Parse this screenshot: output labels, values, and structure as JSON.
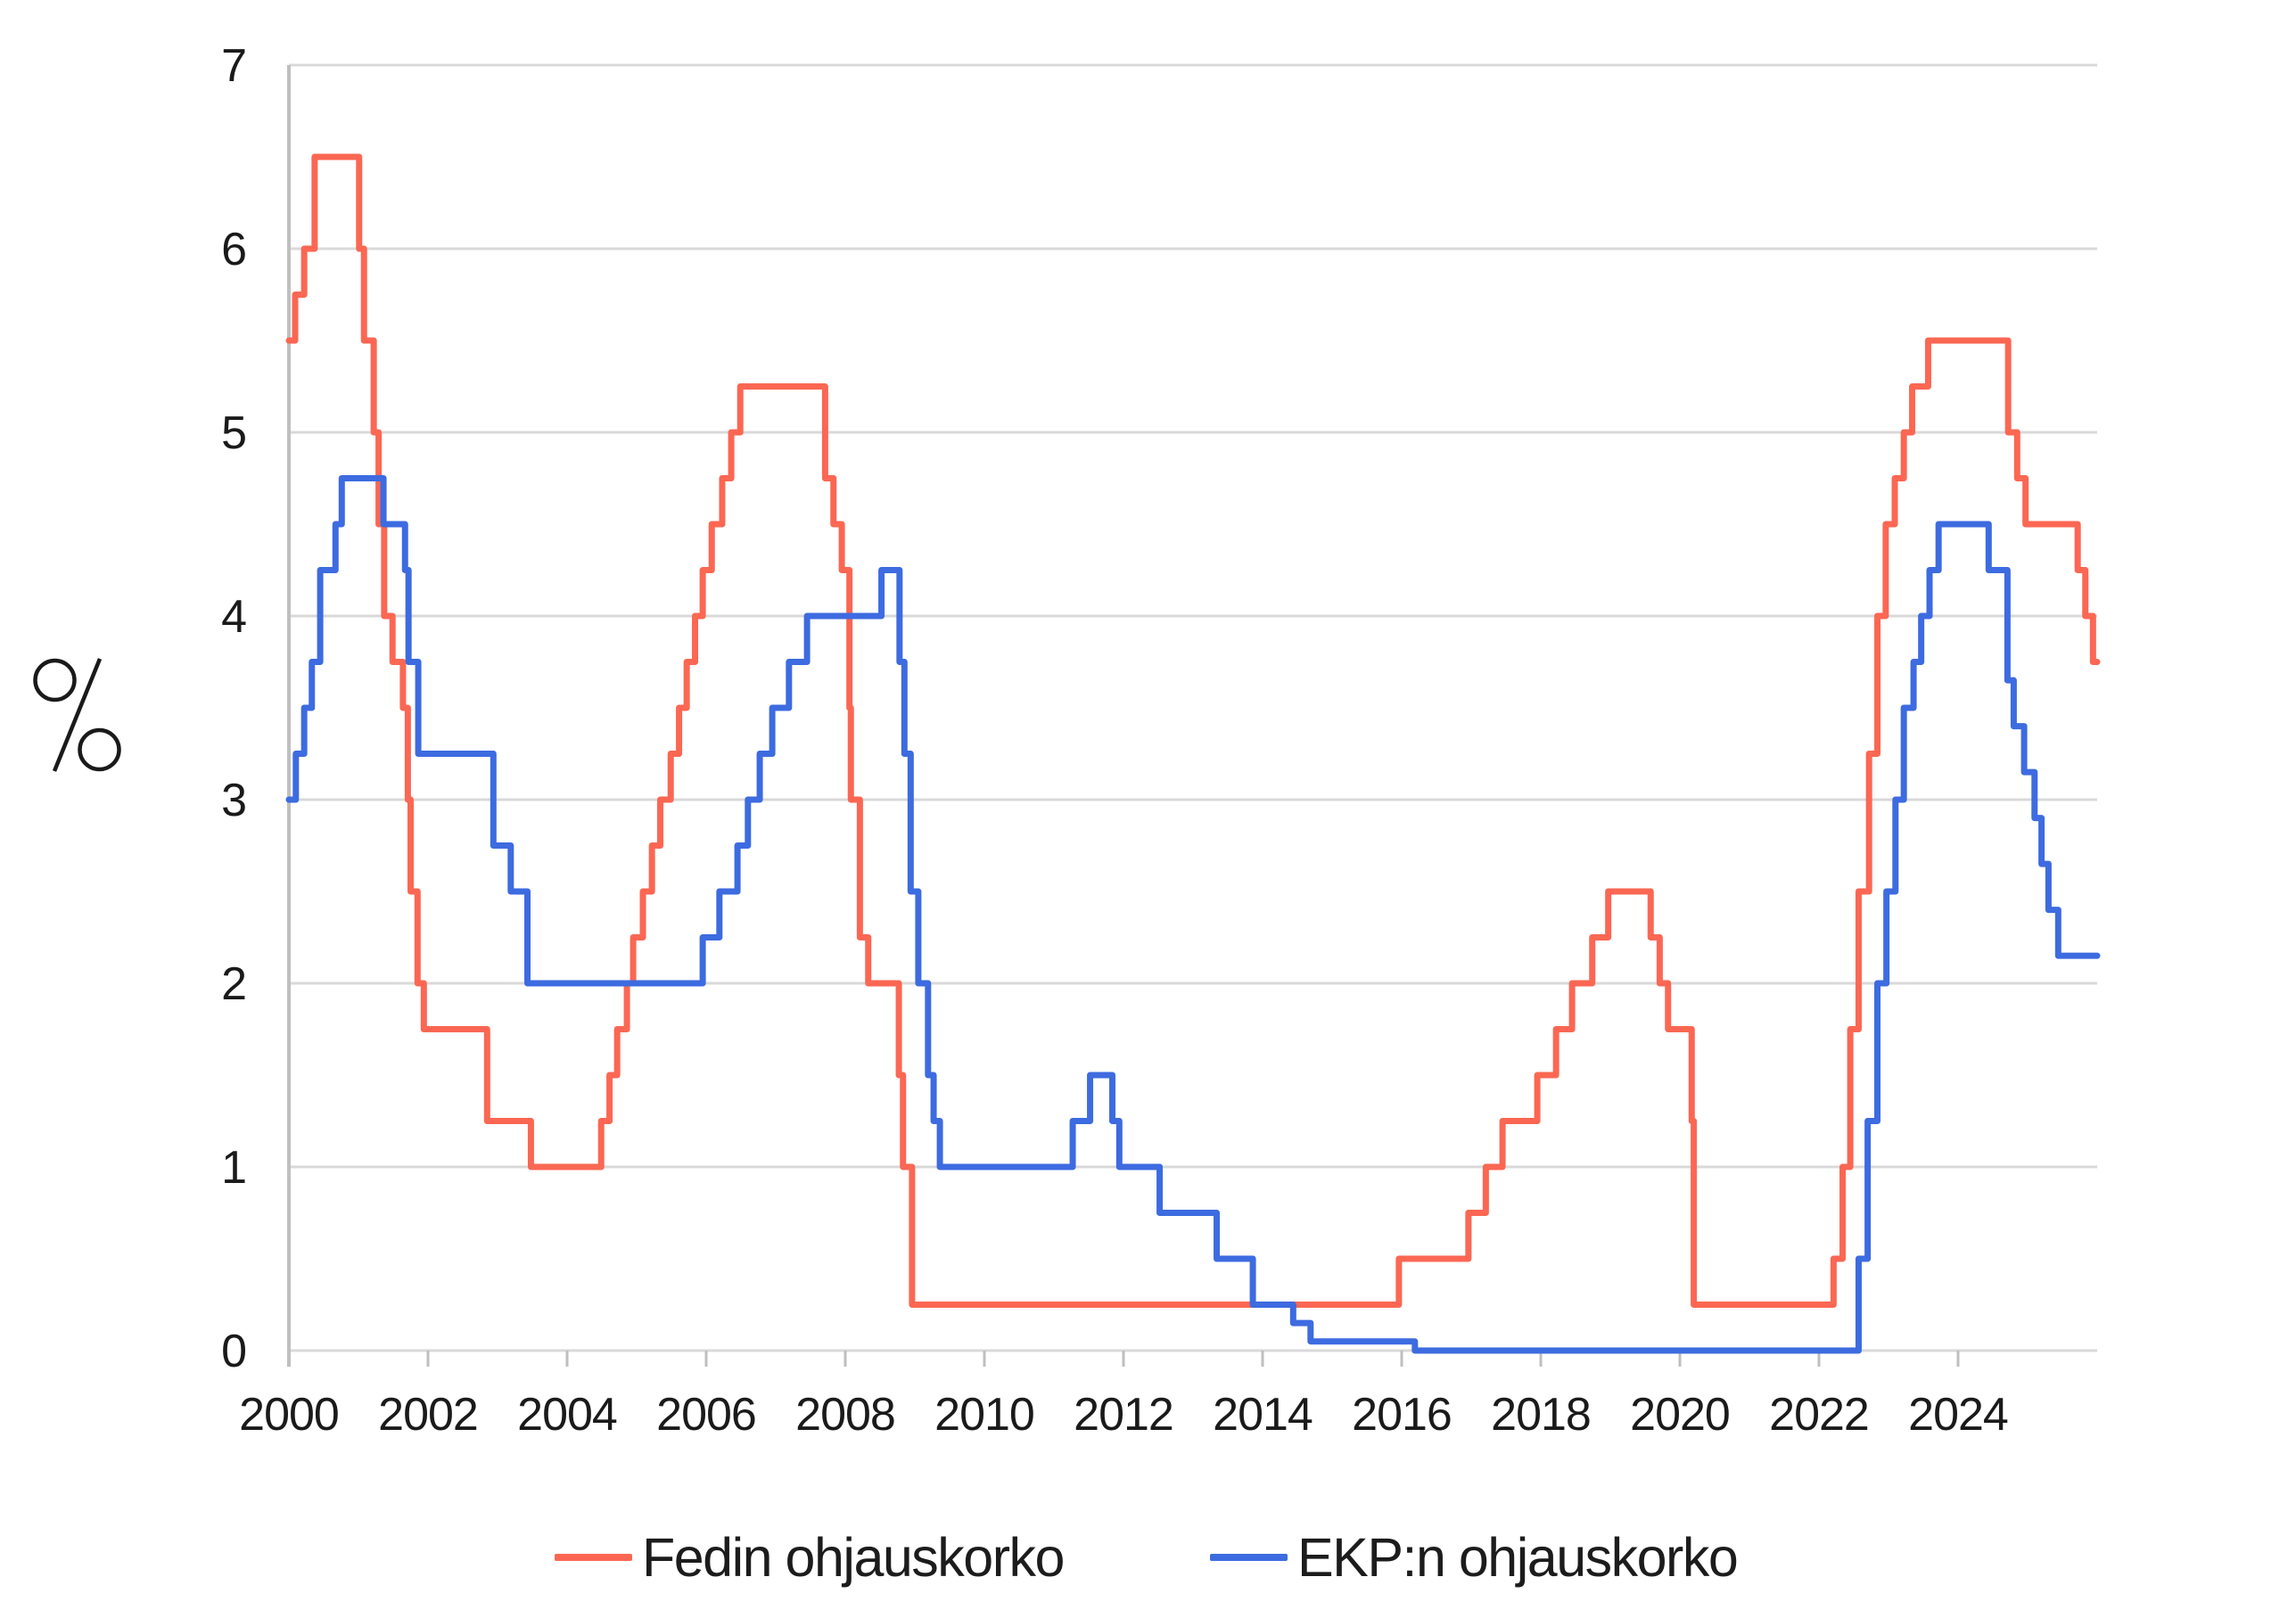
{
  "chart_data": {
    "type": "line",
    "subtype": "step",
    "title": "",
    "xlabel": "",
    "ylabel": "%",
    "ylim": [
      0,
      7
    ],
    "xlim": [
      2000,
      2026
    ],
    "y_ticks": [
      0,
      1,
      2,
      3,
      4,
      5,
      6,
      7
    ],
    "x_ticks": [
      2000,
      2002,
      2004,
      2006,
      2008,
      2010,
      2012,
      2014,
      2016,
      2018,
      2020,
      2022,
      2024
    ],
    "grid": "horizontal",
    "legend_position": "bottom",
    "style": {
      "gridline_color": "#d9d9d9",
      "axis_color": "#bfbfbf",
      "text_color": "#1a1a1a",
      "background": "#ffffff",
      "line_width": 7
    },
    "series": [
      {
        "id": "fed",
        "name": "Fedin ohjauskorko",
        "color": "#fb6753",
        "end_x": 2026.0,
        "steps": [
          [
            2000.0,
            5.5
          ],
          [
            2000.09,
            5.75
          ],
          [
            2000.22,
            6.0
          ],
          [
            2000.37,
            6.5
          ],
          [
            2001.01,
            6.0
          ],
          [
            2001.08,
            5.5
          ],
          [
            2001.22,
            5.0
          ],
          [
            2001.29,
            4.5
          ],
          [
            2001.37,
            4.0
          ],
          [
            2001.49,
            3.75
          ],
          [
            2001.64,
            3.5
          ],
          [
            2001.71,
            3.0
          ],
          [
            2001.75,
            2.5
          ],
          [
            2001.85,
            2.0
          ],
          [
            2001.94,
            1.75
          ],
          [
            2002.85,
            1.25
          ],
          [
            2003.48,
            1.0
          ],
          [
            2004.49,
            1.25
          ],
          [
            2004.61,
            1.5
          ],
          [
            2004.72,
            1.75
          ],
          [
            2004.86,
            2.0
          ],
          [
            2004.95,
            2.25
          ],
          [
            2005.09,
            2.5
          ],
          [
            2005.22,
            2.75
          ],
          [
            2005.34,
            3.0
          ],
          [
            2005.49,
            3.25
          ],
          [
            2005.61,
            3.5
          ],
          [
            2005.72,
            3.75
          ],
          [
            2005.84,
            4.0
          ],
          [
            2005.95,
            4.25
          ],
          [
            2006.08,
            4.5
          ],
          [
            2006.23,
            4.75
          ],
          [
            2006.36,
            5.0
          ],
          [
            2006.49,
            5.25
          ],
          [
            2007.71,
            4.75
          ],
          [
            2007.83,
            4.5
          ],
          [
            2007.95,
            4.25
          ],
          [
            2008.06,
            3.5
          ],
          [
            2008.08,
            3.0
          ],
          [
            2008.21,
            2.25
          ],
          [
            2008.33,
            2.0
          ],
          [
            2008.77,
            1.5
          ],
          [
            2008.83,
            1.0
          ],
          [
            2008.96,
            0.25
          ],
          [
            2015.96,
            0.5
          ],
          [
            2016.96,
            0.75
          ],
          [
            2017.21,
            1.0
          ],
          [
            2017.45,
            1.25
          ],
          [
            2017.95,
            1.5
          ],
          [
            2018.22,
            1.75
          ],
          [
            2018.45,
            2.0
          ],
          [
            2018.74,
            2.25
          ],
          [
            2018.97,
            2.5
          ],
          [
            2019.58,
            2.25
          ],
          [
            2019.71,
            2.0
          ],
          [
            2019.83,
            1.75
          ],
          [
            2020.17,
            1.25
          ],
          [
            2020.2,
            0.25
          ],
          [
            2022.21,
            0.5
          ],
          [
            2022.34,
            1.0
          ],
          [
            2022.45,
            1.75
          ],
          [
            2022.57,
            2.5
          ],
          [
            2022.72,
            3.25
          ],
          [
            2022.84,
            4.0
          ],
          [
            2022.96,
            4.5
          ],
          [
            2023.09,
            4.75
          ],
          [
            2023.22,
            5.0
          ],
          [
            2023.34,
            5.25
          ],
          [
            2023.57,
            5.5
          ],
          [
            2024.72,
            5.0
          ],
          [
            2024.85,
            4.75
          ],
          [
            2024.97,
            4.5
          ],
          [
            2025.72,
            4.25
          ],
          [
            2025.83,
            4.0
          ],
          [
            2025.94,
            3.75
          ]
        ]
      },
      {
        "id": "ecb",
        "name": "EKP:n ohjauskorko",
        "color": "#3d6be0",
        "end_x": 2026.0,
        "steps": [
          [
            2000.0,
            3.0
          ],
          [
            2000.1,
            3.25
          ],
          [
            2000.22,
            3.5
          ],
          [
            2000.33,
            3.75
          ],
          [
            2000.45,
            4.25
          ],
          [
            2000.67,
            4.5
          ],
          [
            2000.76,
            4.75
          ],
          [
            2001.36,
            4.5
          ],
          [
            2001.67,
            4.25
          ],
          [
            2001.72,
            3.75
          ],
          [
            2001.86,
            3.25
          ],
          [
            2002.94,
            2.75
          ],
          [
            2003.19,
            2.5
          ],
          [
            2003.43,
            2.0
          ],
          [
            2005.95,
            2.25
          ],
          [
            2006.19,
            2.5
          ],
          [
            2006.45,
            2.75
          ],
          [
            2006.6,
            3.0
          ],
          [
            2006.77,
            3.25
          ],
          [
            2006.95,
            3.5
          ],
          [
            2007.19,
            3.75
          ],
          [
            2007.45,
            4.0
          ],
          [
            2008.52,
            4.25
          ],
          [
            2008.78,
            3.75
          ],
          [
            2008.85,
            3.25
          ],
          [
            2008.94,
            2.5
          ],
          [
            2009.05,
            2.0
          ],
          [
            2009.19,
            1.5
          ],
          [
            2009.27,
            1.25
          ],
          [
            2009.36,
            1.0
          ],
          [
            2011.27,
            1.25
          ],
          [
            2011.52,
            1.5
          ],
          [
            2011.84,
            1.25
          ],
          [
            2011.94,
            1.0
          ],
          [
            2012.52,
            0.75
          ],
          [
            2013.34,
            0.5
          ],
          [
            2013.86,
            0.25
          ],
          [
            2014.44,
            0.15
          ],
          [
            2014.69,
            0.05
          ],
          [
            2016.19,
            0.0
          ],
          [
            2022.57,
            0.5
          ],
          [
            2022.7,
            1.25
          ],
          [
            2022.84,
            2.0
          ],
          [
            2022.97,
            2.5
          ],
          [
            2023.1,
            3.0
          ],
          [
            2023.22,
            3.5
          ],
          [
            2023.36,
            3.75
          ],
          [
            2023.47,
            4.0
          ],
          [
            2023.59,
            4.25
          ],
          [
            2023.72,
            4.5
          ],
          [
            2024.44,
            4.25
          ],
          [
            2024.71,
            3.65
          ],
          [
            2024.8,
            3.4
          ],
          [
            2024.95,
            3.15
          ],
          [
            2025.1,
            2.9
          ],
          [
            2025.2,
            2.65
          ],
          [
            2025.3,
            2.4
          ],
          [
            2025.44,
            2.15
          ]
        ]
      }
    ],
    "annotations": [
      {
        "id": "fed-trend-arrow",
        "series": "fed",
        "shape": "arrow",
        "direction": "down-right",
        "color": "#fb6753",
        "from": [
          26.25,
          3.64
        ],
        "to": [
          28.3,
          3.25
        ]
      },
      {
        "id": "ecb-trend-arrow",
        "series": "ecb",
        "shape": "arrow",
        "direction": "right",
        "color": "#3d6be0",
        "from": [
          26.3,
          2.19
        ],
        "to": [
          28.45,
          2.19
        ]
      }
    ]
  },
  "legend": {
    "items": [
      {
        "label": "Fedin ohjauskorko",
        "color": "#fb6753"
      },
      {
        "label": "EKP:n ohjauskorko",
        "color": "#3d6be0"
      }
    ]
  }
}
